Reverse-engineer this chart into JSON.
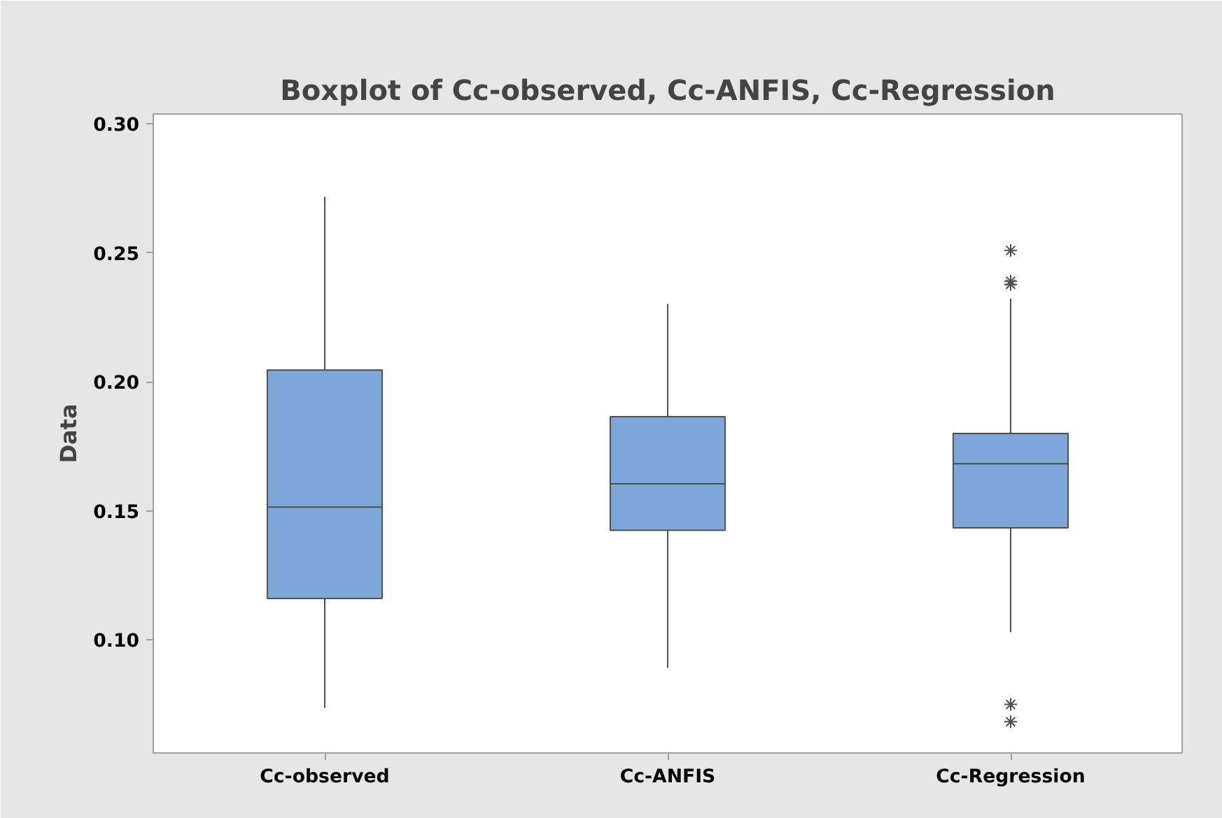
{
  "chart_data": {
    "type": "box",
    "title": "Boxplot of Cc-observed, Cc-ANFIS, Cc-Regression",
    "ylabel": "Data",
    "categories": [
      "Cc-observed",
      "Cc-ANFIS",
      "Cc-Regression"
    ],
    "series": [
      {
        "color": "#7da7d9",
        "boxes": [
          {
            "low": 0.0737,
            "q1": 0.1161,
            "median": 0.1515,
            "q3": 0.2046,
            "high": 0.2717
          },
          {
            "low": 0.0892,
            "q1": 0.1425,
            "median": 0.1605,
            "q3": 0.1865,
            "high": 0.2302
          },
          {
            "low": 0.103,
            "q1": 0.1434,
            "median": 0.1683,
            "q3": 0.18,
            "high": 0.2322,
            "outliers": [
              0.2509,
              0.239,
              0.2378,
              0.075,
              0.0683
            ]
          }
        ]
      }
    ],
    "ylim": [
      0.0562,
      0.3038
    ],
    "yticks": [
      {
        "value": 0.1,
        "label": "0.10"
      },
      {
        "value": 0.15,
        "label": "0.15"
      },
      {
        "value": 0.2,
        "label": "0.20"
      },
      {
        "value": 0.25,
        "label": "0.25"
      },
      {
        "value": 0.3,
        "label": "0.30"
      }
    ],
    "grid": false
  }
}
